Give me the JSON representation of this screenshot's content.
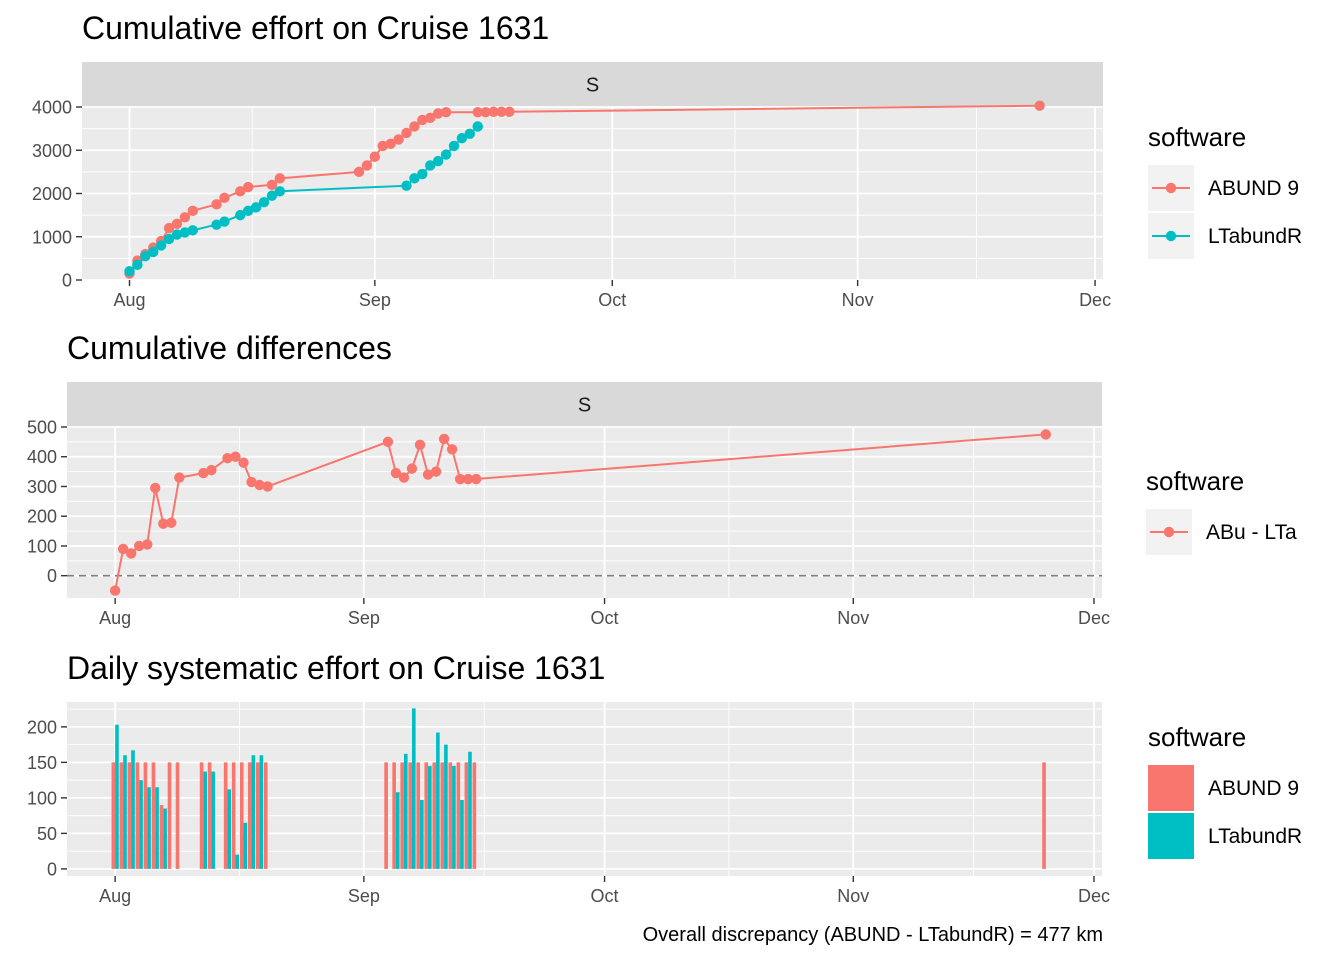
{
  "palette": {
    "abund": "#F8766D",
    "ltabundr": "#00BFC4",
    "panel_bg": "#EBEBEB",
    "strip_bg": "#D9D9D9",
    "grid": "#FFFFFF",
    "tick_text": "#4D4D4D",
    "zero_line": "#7F7F7F"
  },
  "caption": "Overall discrepancy (ABUND - LTabundR) = 477 km",
  "chart_data": [
    {
      "type": "line",
      "title": "Cumulative effort on Cruise 1631",
      "facet": "S",
      "xlabel": "",
      "ylabel": "",
      "x_ticks": [
        "Aug",
        "Sep",
        "Oct",
        "Nov",
        "Dec"
      ],
      "x_tick_days": [
        0,
        31,
        61,
        92,
        122
      ],
      "x_range": [
        -6,
        123
      ],
      "y_ticks": [
        0,
        1000,
        2000,
        3000,
        4000
      ],
      "ylim": [
        0,
        4000
      ],
      "grid": true,
      "legend": {
        "title": "software",
        "position": "right",
        "entries": [
          "ABUND 9",
          "LTabundR"
        ]
      },
      "series": [
        {
          "name": "ABUND 9",
          "color": "#F8766D",
          "x": [
            0,
            1,
            2,
            3,
            4,
            5,
            6,
            7,
            8,
            11,
            12,
            14,
            15,
            18,
            19,
            29,
            30,
            31,
            32,
            33,
            34,
            35,
            36,
            37,
            38,
            39,
            40,
            44,
            45,
            46,
            47,
            48,
            115
          ],
          "y": [
            150,
            450,
            600,
            750,
            900,
            1200,
            1300,
            1450,
            1600,
            1750,
            1900,
            2050,
            2150,
            2200,
            2350,
            2500,
            2650,
            2850,
            3100,
            3150,
            3250,
            3400,
            3550,
            3700,
            3750,
            3850,
            3880,
            3880,
            3880,
            3890,
            3890,
            3890,
            4030
          ]
        },
        {
          "name": "LTabundR",
          "color": "#00BFC4",
          "x": [
            0,
            1,
            2,
            3,
            4,
            5,
            6,
            7,
            8,
            11,
            12,
            14,
            15,
            16,
            17,
            18,
            19,
            35,
            36,
            37,
            38,
            39,
            40,
            41,
            42,
            43,
            44
          ],
          "y": [
            200,
            350,
            550,
            650,
            800,
            950,
            1050,
            1100,
            1150,
            1280,
            1350,
            1500,
            1600,
            1680,
            1800,
            1950,
            2050,
            2180,
            2350,
            2450,
            2650,
            2750,
            2900,
            3100,
            3280,
            3380,
            3550
          ]
        }
      ]
    },
    {
      "type": "line",
      "title": "Cumulative differences",
      "facet": "S",
      "xlabel": "",
      "ylabel": "",
      "x_ticks": [
        "Aug",
        "Sep",
        "Oct",
        "Nov",
        "Dec"
      ],
      "x_tick_days": [
        0,
        31,
        61,
        92,
        122
      ],
      "x_range": [
        -6,
        123
      ],
      "y_ticks": [
        0,
        100,
        200,
        300,
        400,
        500
      ],
      "ylim": [
        -75,
        500
      ],
      "reference_line": 0,
      "grid": true,
      "legend": {
        "title": "software",
        "position": "right",
        "entries": [
          "ABu - LTa"
        ]
      },
      "series": [
        {
          "name": "ABu - LTa",
          "color": "#F8766D",
          "x": [
            0,
            1,
            2,
            3,
            4,
            5,
            6,
            7,
            8,
            11,
            12,
            14,
            15,
            16,
            17,
            18,
            19,
            34,
            35,
            36,
            37,
            38,
            39,
            40,
            41,
            42,
            43,
            44,
            45,
            116
          ],
          "y": [
            -50,
            90,
            75,
            100,
            105,
            295,
            175,
            178,
            330,
            345,
            355,
            395,
            400,
            380,
            315,
            305,
            300,
            450,
            345,
            330,
            360,
            440,
            340,
            350,
            460,
            425,
            325,
            325,
            325,
            475
          ]
        }
      ]
    },
    {
      "type": "bar",
      "title": "Daily systematic effort on Cruise 1631",
      "xlabel": "",
      "ylabel": "",
      "x_ticks": [
        "Aug",
        "Sep",
        "Oct",
        "Nov",
        "Dec"
      ],
      "x_tick_days": [
        0,
        31,
        61,
        92,
        122
      ],
      "x_range": [
        -6,
        123
      ],
      "y_ticks": [
        0,
        50,
        100,
        150,
        200
      ],
      "ylim": [
        -10,
        235
      ],
      "grid": true,
      "legend": {
        "title": "software",
        "position": "right",
        "entries": [
          "ABUND 9",
          "LTabundR"
        ]
      },
      "series": [
        {
          "name": "ABUND 9",
          "color": "#F8766D",
          "x": [
            0,
            1,
            2,
            3,
            4,
            5,
            6,
            7,
            8,
            11,
            12,
            14,
            15,
            16,
            17,
            18,
            19,
            34,
            35,
            36,
            37,
            38,
            39,
            40,
            41,
            42,
            43,
            44,
            45,
            116
          ],
          "y": [
            150,
            150,
            150,
            150,
            150,
            150,
            90,
            150,
            150,
            150,
            150,
            150,
            150,
            150,
            150,
            150,
            150,
            150,
            150,
            150,
            150,
            150,
            150,
            150,
            150,
            150,
            150,
            150,
            150,
            150
          ]
        },
        {
          "name": "LTabundR",
          "color": "#00BFC4",
          "x": [
            0,
            1,
            2,
            3,
            4,
            5,
            6,
            7,
            8,
            11,
            12,
            14,
            15,
            16,
            17,
            18,
            19,
            34,
            35,
            36,
            37,
            38,
            39,
            40,
            41,
            42,
            43,
            44,
            45,
            116
          ],
          "y": [
            203,
            160,
            167,
            125,
            115,
            115,
            85,
            0,
            0,
            137,
            137,
            112,
            20,
            65,
            160,
            160,
            0,
            0,
            108,
            162,
            226,
            97,
            145,
            192,
            175,
            145,
            97,
            165,
            0,
            0
          ]
        }
      ]
    }
  ]
}
